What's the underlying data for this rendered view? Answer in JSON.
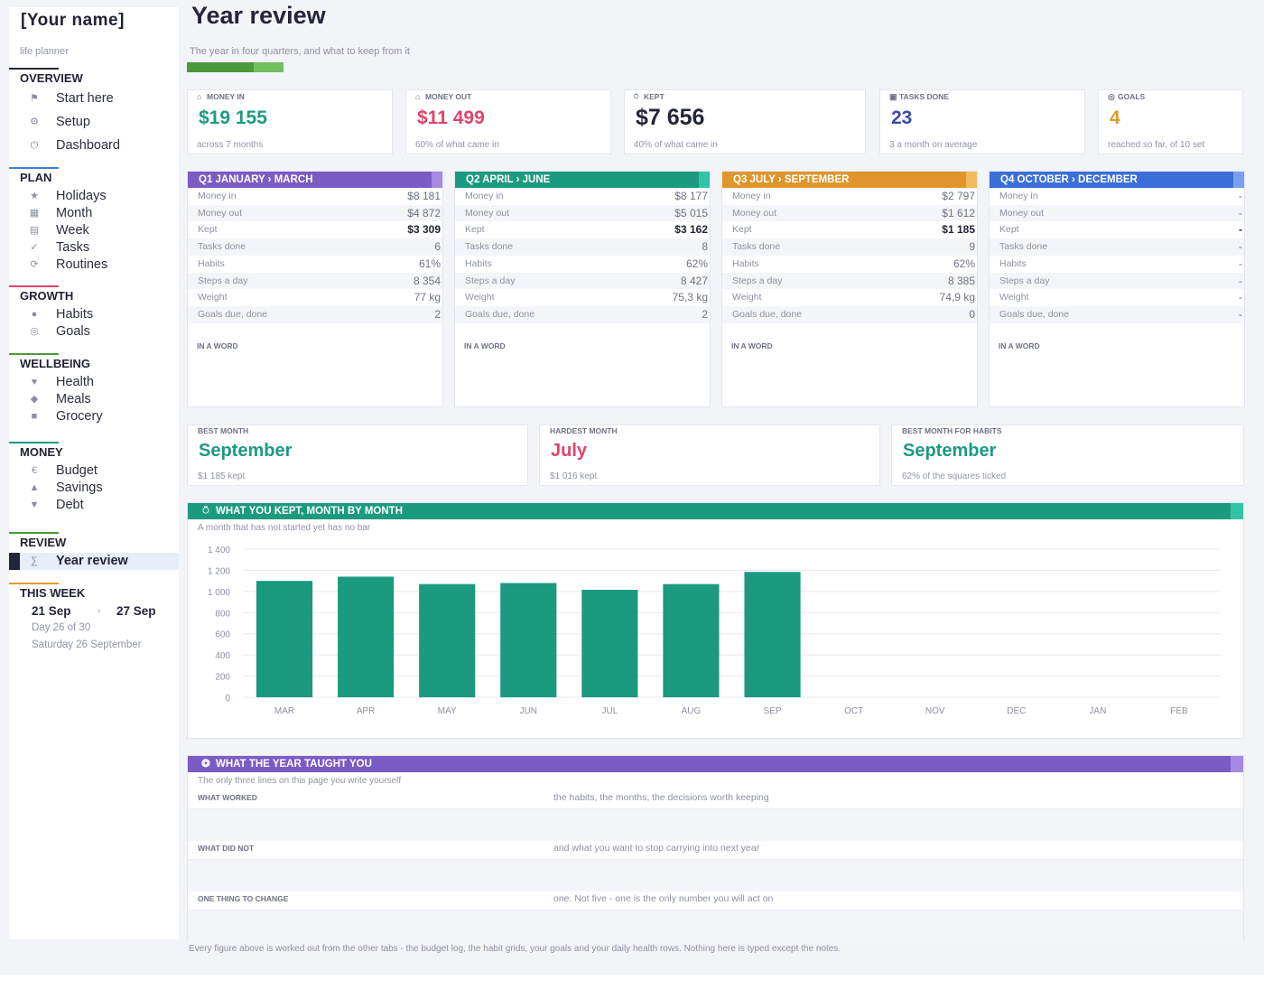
{
  "sidebar": {
    "title": "[Your name]",
    "subtitle": "life planner",
    "sections": [
      {
        "label": "OVERVIEW",
        "color": "#23263a",
        "items": [
          {
            "icon": "flag-icon",
            "glyph": "⚑",
            "label": "Start here"
          },
          {
            "icon": "gear-icon",
            "glyph": "⚙",
            "label": "Setup"
          },
          {
            "icon": "power-icon",
            "glyph": "⏻",
            "label": "Dashboard"
          }
        ]
      },
      {
        "label": "PLAN",
        "color": "#3b7ddd",
        "items": [
          {
            "icon": "star-icon",
            "glyph": "★",
            "label": "Holidays"
          },
          {
            "icon": "calendar-month-icon",
            "glyph": "▦",
            "label": "Month"
          },
          {
            "icon": "calendar-week-icon",
            "glyph": "▤",
            "label": "Week"
          },
          {
            "icon": "check-icon",
            "glyph": "✓",
            "label": "Tasks"
          },
          {
            "icon": "repeat-icon",
            "glyph": "⟳",
            "label": "Routines"
          }
        ]
      },
      {
        "label": "GROWTH",
        "color": "#e0436a",
        "items": [
          {
            "icon": "dot-icon",
            "glyph": "●",
            "label": "Habits"
          },
          {
            "icon": "target-icon",
            "glyph": "◎",
            "label": "Goals"
          }
        ]
      },
      {
        "label": "WELLBEING",
        "color": "#4b9a3a",
        "items": [
          {
            "icon": "heart-icon",
            "glyph": "♥",
            "label": "Health"
          },
          {
            "icon": "diamond-icon",
            "glyph": "◆",
            "label": "Meals"
          },
          {
            "icon": "square-icon",
            "glyph": "■",
            "label": "Grocery"
          }
        ]
      },
      {
        "label": "MONEY",
        "color": "#1c9a80",
        "items": [
          {
            "icon": "euro-icon",
            "glyph": "€",
            "label": "Budget"
          },
          {
            "icon": "triangle-up-icon",
            "glyph": "▲",
            "label": "Savings"
          },
          {
            "icon": "triangle-down-icon",
            "glyph": "▼",
            "label": "Debt"
          }
        ]
      },
      {
        "label": "REVIEW",
        "color": "#4b9a3a",
        "items": [
          {
            "icon": "sigma-icon",
            "glyph": "∑",
            "label": "Year review",
            "active": true
          }
        ]
      }
    ],
    "this_week": {
      "label": "THIS WEEK",
      "color": "#e09a2c",
      "start": "21 Sep",
      "arrow": "›",
      "end": "27 Sep",
      "day": "Day 26 of 30",
      "date": "Saturday 26 September"
    }
  },
  "header": {
    "title": "Year review",
    "subtitle": "The year in four quarters, and what to keep from it",
    "progress": 0.69
  },
  "kpis": [
    {
      "icon": "bank-icon",
      "glyph": "⌂",
      "label": "MONEY IN",
      "value": "$19 155",
      "note": "across 7 months",
      "color": "#1c9a80"
    },
    {
      "icon": "bank-icon",
      "glyph": "⌂",
      "label": "MONEY OUT",
      "value": "$11 499",
      "note": "60% of what came in",
      "color": "#e0436a"
    },
    {
      "icon": "moneybag-icon",
      "glyph": "⍥",
      "label": "KEPT",
      "value": "$7 656",
      "note": "40% of what came in",
      "color": "#23263a"
    },
    {
      "icon": "checkbox-icon",
      "glyph": "▣",
      "label": "TASKS DONE",
      "value": "23",
      "note": "3 a month on average",
      "color": "#3b4ca8"
    },
    {
      "icon": "target-icon",
      "glyph": "◎",
      "label": "GOALS",
      "value": "4",
      "note": "reached so far, of 10 set",
      "color": "#e09a2c"
    }
  ],
  "quarters": [
    {
      "label": "Q1  JANUARY › MARCH",
      "color": "#7b5cc4",
      "tip": "#a48ae0",
      "word": "IN A WORD",
      "rows": [
        [
          "Money in",
          "$8 181"
        ],
        [
          "Money out",
          "$4 872"
        ],
        [
          "Kept",
          "$3 309"
        ],
        [
          "Tasks done",
          "6"
        ],
        [
          "Habits",
          "61%"
        ],
        [
          "Steps a day",
          "8 354"
        ],
        [
          "Weight",
          "77 kg"
        ],
        [
          "Goals due, done",
          "2"
        ]
      ]
    },
    {
      "label": "Q2  APRIL › JUNE",
      "color": "#1c9a80",
      "tip": "#33c4a6",
      "word": "IN A WORD",
      "rows": [
        [
          "Money in",
          "$8 177"
        ],
        [
          "Money out",
          "$5 015"
        ],
        [
          "Kept",
          "$3 162"
        ],
        [
          "Tasks done",
          "8"
        ],
        [
          "Habits",
          "62%"
        ],
        [
          "Steps a day",
          "8 427"
        ],
        [
          "Weight",
          "75,3 kg"
        ],
        [
          "Goals due, done",
          "2"
        ]
      ]
    },
    {
      "label": "Q3  JULY › SEPTEMBER",
      "color": "#e0952c",
      "tip": "#f2b95e",
      "word": "IN A WORD",
      "rows": [
        [
          "Money in",
          "$2 797"
        ],
        [
          "Money out",
          "$1 612"
        ],
        [
          "Kept",
          "$1 185"
        ],
        [
          "Tasks done",
          "9"
        ],
        [
          "Habits",
          "62%"
        ],
        [
          "Steps a day",
          "8 385"
        ],
        [
          "Weight",
          "74,9 kg"
        ],
        [
          "Goals due, done",
          "0"
        ]
      ]
    },
    {
      "label": "Q4  OCTOBER › DECEMBER",
      "color": "#3b6fd8",
      "tip": "#7a9ff0",
      "word": "IN A WORD",
      "rows": [
        [
          "Money in",
          "-"
        ],
        [
          "Money out",
          "-"
        ],
        [
          "Kept",
          "-"
        ],
        [
          "Tasks done",
          "-"
        ],
        [
          "Habits",
          "-"
        ],
        [
          "Steps a day",
          "-"
        ],
        [
          "Weight",
          "-"
        ],
        [
          "Goals due, done",
          "-"
        ]
      ]
    }
  ],
  "highlights": [
    {
      "label": "BEST MONTH",
      "value": "September",
      "note": "$1 185 kept",
      "color": "#1c9a80"
    },
    {
      "label": "HARDEST MONTH",
      "value": "July",
      "note": "$1 016 kept",
      "color": "#e0436a"
    },
    {
      "label": "BEST MONTH FOR HABITS",
      "value": "September",
      "note": "62% of the squares ticked",
      "color": "#1c9a80"
    }
  ],
  "chart_section": {
    "icon": "moneybag-icon",
    "glyph": "⍥",
    "title": "WHAT YOU KEPT, MONTH BY MONTH",
    "subtitle": "A month that has not started yet has no bar",
    "color": "#1c9a80",
    "tip": "#33c4a6"
  },
  "chart_data": {
    "type": "bar",
    "title": "",
    "xlabel": "",
    "ylabel": "",
    "categories": [
      "MAR",
      "APR",
      "MAY",
      "JUN",
      "JUL",
      "AUG",
      "SEP",
      "OCT",
      "NOV",
      "DEC",
      "JAN",
      "FEB"
    ],
    "values": [
      1100,
      1140,
      1070,
      1080,
      1016,
      1070,
      1185,
      null,
      null,
      null,
      null,
      null
    ],
    "ylim": [
      0,
      1400
    ],
    "yticks": [
      "1 400",
      "1 200",
      "1 000",
      "800",
      "600",
      "400",
      "200",
      "0"
    ],
    "grid": true,
    "bar_color": "#1c9a80"
  },
  "reflections": {
    "icon": "brain-icon",
    "glyph": "❂",
    "title": "WHAT THE YEAR TAUGHT YOU",
    "subtitle": "The only three lines on this page you write yourself",
    "color": "#7b5cc4",
    "tip": "#a48ae0",
    "rows": [
      {
        "label": "WHAT WORKED",
        "hint": "the habits, the months, the decisions worth keeping"
      },
      {
        "label": "WHAT DID NOT",
        "hint": "and what you want to stop carrying into next year"
      },
      {
        "label": "ONE THING TO CHANGE",
        "hint": "one. Not five - one is the only number you will act on"
      }
    ]
  },
  "footer": "Every figure above is worked out from the other tabs - the budget log, the habit grids, your goals and your daily health rows. Nothing here is typed except the notes."
}
